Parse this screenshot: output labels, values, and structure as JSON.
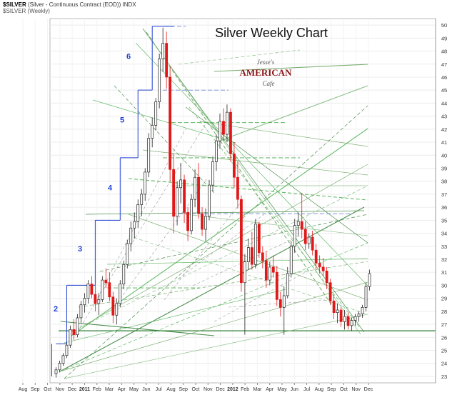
{
  "header": {
    "ticker": "$SILVER",
    "description": "(Silver - Continuous Contract (EOD)) INDX",
    "subtitle": "$SILVER (Weekly)"
  },
  "chart_data": {
    "type": "candlestick",
    "title": "Silver Weekly Chart",
    "logo_text": [
      "Jesse's",
      "AMERICAN",
      "Cafe"
    ],
    "ylim": [
      22.5,
      50.5
    ],
    "y_ticks": [
      23,
      24,
      25,
      26,
      27,
      28,
      29,
      30,
      31,
      32,
      33,
      34,
      35,
      36,
      37,
      38,
      39,
      40,
      41,
      42,
      43,
      44,
      45,
      46,
      47,
      48,
      49,
      50
    ],
    "x_ticks": [
      "Aug",
      "Sep",
      "Oct",
      "Nov",
      "Dec",
      "2011",
      "Feb",
      "Mar",
      "Apr",
      "May",
      "Jun",
      "Jul",
      "Aug",
      "Sep",
      "Oct",
      "Nov",
      "Dec",
      "2012",
      "Feb",
      "Mar",
      "Apr",
      "May",
      "Jun",
      "Jul",
      "Aug",
      "Sep",
      "Oct",
      "Nov",
      "Dec"
    ],
    "wave_labels": [
      {
        "label": "2",
        "y": 28.0
      },
      {
        "label": "3",
        "y": 32.6
      },
      {
        "label": "4",
        "y": 37.3
      },
      {
        "label": "5",
        "y": 42.5
      },
      {
        "label": "6",
        "y": 47.4
      }
    ],
    "step_levels": [
      {
        "start": 0,
        "end": 3,
        "price": 25.5
      },
      {
        "start": 3,
        "end": 11,
        "price": 30.0
      },
      {
        "start": 11,
        "end": 18,
        "price": 35.0
      },
      {
        "start": 18,
        "end": 23,
        "price": 39.8
      },
      {
        "start": 23,
        "end": 27,
        "price": 45.0
      },
      {
        "start": 27,
        "end": 33,
        "price": 49.9
      }
    ],
    "horizontal_support": 26.5,
    "candles": [
      [
        23.2,
        23.7,
        22.9,
        23.5
      ],
      [
        23.5,
        24.2,
        23.3,
        24.0
      ],
      [
        24.0,
        24.8,
        23.8,
        24.6
      ],
      [
        24.6,
        25.6,
        24.4,
        25.4
      ],
      [
        25.4,
        26.9,
        25.2,
        26.6
      ],
      [
        26.6,
        27.4,
        25.8,
        26.2
      ],
      [
        26.2,
        27.8,
        26.0,
        27.5
      ],
      [
        27.5,
        28.8,
        27.1,
        28.5
      ],
      [
        28.5,
        29.4,
        27.9,
        29.0
      ],
      [
        29.0,
        30.4,
        28.6,
        30.1
      ],
      [
        30.1,
        30.7,
        29.0,
        29.3
      ],
      [
        29.3,
        30.0,
        28.0,
        28.6
      ],
      [
        28.6,
        29.4,
        27.7,
        28.9
      ],
      [
        28.9,
        30.7,
        28.7,
        30.4
      ],
      [
        30.4,
        31.3,
        29.8,
        30.2
      ],
      [
        30.2,
        31.0,
        28.8,
        29.1
      ],
      [
        29.1,
        29.5,
        27.1,
        27.7
      ],
      [
        27.7,
        29.0,
        27.0,
        28.6
      ],
      [
        28.6,
        30.4,
        28.3,
        30.1
      ],
      [
        30.1,
        31.9,
        29.7,
        31.6
      ],
      [
        31.6,
        33.5,
        31.3,
        33.2
      ],
      [
        33.2,
        34.9,
        32.6,
        34.4
      ],
      [
        34.4,
        35.6,
        33.6,
        34.9
      ],
      [
        34.9,
        36.6,
        34.4,
        36.2
      ],
      [
        36.2,
        37.4,
        35.3,
        37.0
      ],
      [
        37.0,
        39.0,
        36.5,
        38.7
      ],
      [
        38.7,
        41.7,
        38.3,
        41.3
      ],
      [
        41.3,
        42.9,
        40.6,
        42.3
      ],
      [
        42.3,
        44.4,
        41.9,
        44.1
      ],
      [
        44.1,
        47.8,
        43.6,
        47.4
      ],
      [
        47.4,
        49.8,
        46.4,
        48.6
      ],
      [
        48.6,
        49.5,
        45.1,
        46.0
      ],
      [
        46.0,
        46.8,
        38.0,
        38.9
      ],
      [
        38.9,
        40.1,
        34.0,
        35.3
      ],
      [
        35.3,
        38.0,
        34.6,
        37.5
      ],
      [
        37.5,
        39.4,
        36.3,
        38.1
      ],
      [
        38.1,
        38.5,
        34.8,
        35.6
      ],
      [
        35.6,
        36.0,
        33.4,
        34.2
      ],
      [
        34.2,
        37.0,
        33.9,
        36.6
      ],
      [
        36.6,
        38.9,
        36.0,
        38.3
      ],
      [
        38.3,
        39.4,
        35.1,
        35.5
      ],
      [
        35.5,
        36.0,
        33.8,
        34.3
      ],
      [
        34.3,
        35.9,
        33.4,
        35.3
      ],
      [
        35.3,
        38.1,
        35.0,
        37.7
      ],
      [
        37.7,
        39.9,
        37.2,
        39.5
      ],
      [
        39.5,
        41.6,
        38.8,
        41.1
      ],
      [
        41.1,
        43.2,
        40.5,
        42.6
      ],
      [
        42.6,
        43.6,
        41.1,
        41.6
      ],
      [
        41.6,
        43.9,
        41.0,
        43.3
      ],
      [
        43.3,
        43.6,
        39.5,
        40.1
      ],
      [
        40.1,
        41.0,
        37.5,
        38.3
      ],
      [
        38.3,
        39.5,
        35.9,
        36.6
      ],
      [
        36.6,
        36.9,
        29.5,
        30.2
      ],
      [
        30.2,
        32.4,
        26.2,
        31.8
      ],
      [
        31.8,
        33.6,
        31.2,
        32.9
      ],
      [
        32.9,
        34.1,
        31.2,
        31.6
      ],
      [
        31.6,
        35.1,
        31.3,
        34.7
      ],
      [
        34.7,
        34.9,
        32.1,
        32.5
      ],
      [
        32.5,
        33.0,
        31.3,
        31.9
      ],
      [
        31.9,
        32.6,
        29.8,
        30.4
      ],
      [
        30.4,
        31.8,
        30.0,
        31.4
      ],
      [
        31.4,
        32.3,
        30.6,
        31.0
      ],
      [
        31.0,
        31.5,
        28.4,
        28.9
      ],
      [
        28.9,
        29.5,
        27.6,
        28.3
      ],
      [
        28.3,
        29.9,
        26.2,
        29.2
      ],
      [
        29.2,
        31.4,
        29.0,
        30.9
      ],
      [
        30.9,
        33.4,
        30.6,
        33.0
      ],
      [
        33.0,
        35.1,
        32.5,
        34.6
      ],
      [
        34.6,
        35.6,
        33.8,
        34.9
      ],
      [
        34.9,
        37.1,
        33.6,
        34.3
      ],
      [
        34.3,
        34.9,
        32.7,
        33.2
      ],
      [
        33.2,
        34.0,
        32.8,
        33.7
      ],
      [
        33.7,
        34.2,
        32.3,
        32.7
      ],
      [
        32.7,
        33.2,
        31.2,
        31.7
      ],
      [
        31.7,
        32.3,
        30.9,
        31.4
      ],
      [
        31.4,
        32.1,
        30.7,
        31.1
      ],
      [
        31.1,
        31.4,
        29.7,
        30.2
      ],
      [
        30.2,
        30.5,
        28.5,
        28.8
      ],
      [
        28.8,
        29.3,
        27.4,
        27.9
      ],
      [
        27.9,
        28.6,
        27.1,
        28.1
      ],
      [
        28.1,
        28.3,
        26.8,
        27.2
      ],
      [
        27.2,
        28.1,
        26.6,
        27.6
      ],
      [
        27.6,
        27.9,
        26.6,
        26.9
      ],
      [
        26.9,
        27.5,
        26.5,
        27.3
      ],
      [
        27.3,
        27.8,
        26.9,
        27.6
      ],
      [
        27.6,
        28.0,
        27.2,
        27.8
      ],
      [
        27.8,
        28.5,
        27.5,
        28.3
      ],
      [
        28.3,
        30.2,
        28.0,
        29.9
      ],
      [
        29.9,
        31.2,
        29.6,
        30.9
      ]
    ]
  }
}
